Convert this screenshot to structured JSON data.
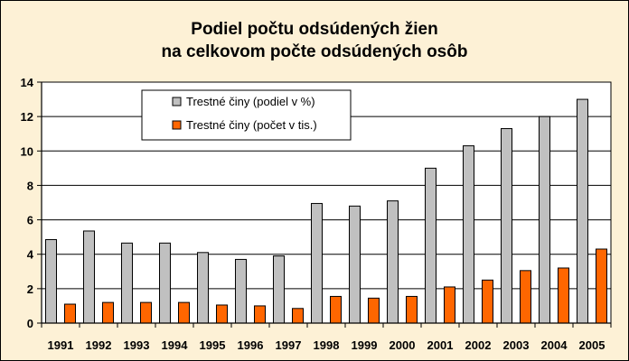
{
  "chart_data": {
    "type": "bar",
    "title_lines": [
      "Podiel počtu odsúdených žien",
      "na celkovom počte odsúdených osôb"
    ],
    "categories": [
      "1991",
      "1992",
      "1993",
      "1994",
      "1995",
      "1996",
      "1997",
      "1998",
      "1999",
      "2000",
      "2001",
      "2002",
      "2003",
      "2004",
      "2005"
    ],
    "series": [
      {
        "name": "Trestné činy (podiel v %)",
        "color": "#c0c0c0",
        "values": [
          4.85,
          5.35,
          4.65,
          4.65,
          4.1,
          3.7,
          3.9,
          6.95,
          6.8,
          7.1,
          9.0,
          10.3,
          11.3,
          12.0,
          13.0
        ]
      },
      {
        "name": "Trestné činy (počet v tis.)",
        "color": "#ff6600",
        "values": [
          1.1,
          1.2,
          1.2,
          1.2,
          1.05,
          1.0,
          0.85,
          1.55,
          1.45,
          1.55,
          2.1,
          2.5,
          3.05,
          3.2,
          4.3
        ]
      }
    ],
    "ylim": [
      0,
      14
    ],
    "yticks": [
      0,
      2,
      4,
      6,
      8,
      10,
      12,
      14
    ],
    "grid": true,
    "legend_position": "top-left"
  }
}
